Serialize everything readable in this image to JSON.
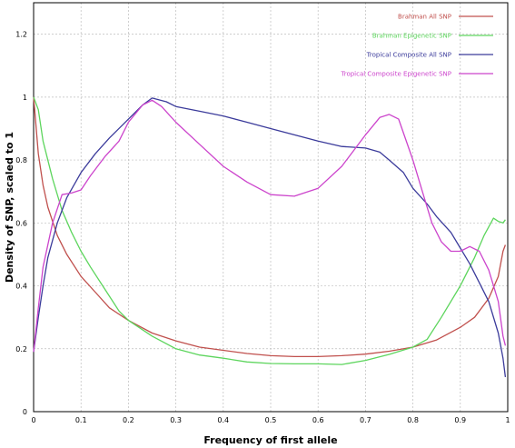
{
  "chart_data": {
    "type": "line",
    "xlabel": "Frequency of first allele",
    "ylabel": "Density of SNP, scaled to 1",
    "xlim": [
      0,
      1
    ],
    "ylim": [
      0,
      1.3
    ],
    "x_ticks": [
      "0",
      "0.1",
      "0.2",
      "0.3",
      "0.4",
      "0.5",
      "0.6",
      "0.7",
      "0.8",
      "0.9",
      "1"
    ],
    "y_ticks": [
      "0",
      "0.2",
      "0.4",
      "0.6",
      "0.8",
      "1",
      "1.2"
    ],
    "grid": true,
    "legend_position": "top-right",
    "series": [
      {
        "name": "Brahman All SNP",
        "color": "#c0504d",
        "points": [
          [
            0.0,
            1.0
          ],
          [
            0.01,
            0.82
          ],
          [
            0.02,
            0.72
          ],
          [
            0.03,
            0.65
          ],
          [
            0.05,
            0.56
          ],
          [
            0.07,
            0.5
          ],
          [
            0.1,
            0.43
          ],
          [
            0.13,
            0.38
          ],
          [
            0.16,
            0.33
          ],
          [
            0.2,
            0.29
          ],
          [
            0.25,
            0.25
          ],
          [
            0.3,
            0.225
          ],
          [
            0.35,
            0.205
          ],
          [
            0.4,
            0.195
          ],
          [
            0.45,
            0.185
          ],
          [
            0.5,
            0.178
          ],
          [
            0.55,
            0.175
          ],
          [
            0.6,
            0.175
          ],
          [
            0.65,
            0.178
          ],
          [
            0.7,
            0.183
          ],
          [
            0.75,
            0.192
          ],
          [
            0.8,
            0.205
          ],
          [
            0.85,
            0.228
          ],
          [
            0.9,
            0.268
          ],
          [
            0.93,
            0.3
          ],
          [
            0.96,
            0.36
          ],
          [
            0.98,
            0.43
          ],
          [
            0.99,
            0.51
          ],
          [
            0.995,
            0.53
          ]
        ]
      },
      {
        "name": "Brahman Epigenetic SNP",
        "color": "#5dd55d",
        "points": [
          [
            0.0,
            1.0
          ],
          [
            0.01,
            0.96
          ],
          [
            0.02,
            0.86
          ],
          [
            0.04,
            0.74
          ],
          [
            0.06,
            0.64
          ],
          [
            0.08,
            0.57
          ],
          [
            0.1,
            0.51
          ],
          [
            0.12,
            0.46
          ],
          [
            0.15,
            0.39
          ],
          [
            0.18,
            0.32
          ],
          [
            0.2,
            0.29
          ],
          [
            0.25,
            0.24
          ],
          [
            0.3,
            0.2
          ],
          [
            0.35,
            0.18
          ],
          [
            0.4,
            0.17
          ],
          [
            0.45,
            0.158
          ],
          [
            0.5,
            0.153
          ],
          [
            0.55,
            0.152
          ],
          [
            0.6,
            0.152
          ],
          [
            0.65,
            0.15
          ],
          [
            0.7,
            0.163
          ],
          [
            0.75,
            0.182
          ],
          [
            0.8,
            0.205
          ],
          [
            0.83,
            0.23
          ],
          [
            0.86,
            0.3
          ],
          [
            0.9,
            0.4
          ],
          [
            0.93,
            0.49
          ],
          [
            0.95,
            0.56
          ],
          [
            0.97,
            0.615
          ],
          [
            0.98,
            0.605
          ],
          [
            0.99,
            0.6
          ],
          [
            0.995,
            0.61
          ]
        ]
      },
      {
        "name": "Tropical Composite All SNP",
        "color": "#3b3b9b",
        "points": [
          [
            0.0,
            0.19
          ],
          [
            0.01,
            0.3
          ],
          [
            0.02,
            0.4
          ],
          [
            0.03,
            0.49
          ],
          [
            0.05,
            0.6
          ],
          [
            0.07,
            0.68
          ],
          [
            0.1,
            0.76
          ],
          [
            0.13,
            0.82
          ],
          [
            0.16,
            0.87
          ],
          [
            0.2,
            0.93
          ],
          [
            0.23,
            0.975
          ],
          [
            0.25,
            0.997
          ],
          [
            0.28,
            0.985
          ],
          [
            0.3,
            0.97
          ],
          [
            0.35,
            0.955
          ],
          [
            0.4,
            0.94
          ],
          [
            0.45,
            0.92
          ],
          [
            0.5,
            0.9
          ],
          [
            0.55,
            0.88
          ],
          [
            0.6,
            0.86
          ],
          [
            0.65,
            0.843
          ],
          [
            0.7,
            0.838
          ],
          [
            0.73,
            0.825
          ],
          [
            0.75,
            0.8
          ],
          [
            0.78,
            0.76
          ],
          [
            0.8,
            0.71
          ],
          [
            0.83,
            0.66
          ],
          [
            0.85,
            0.62
          ],
          [
            0.88,
            0.57
          ],
          [
            0.9,
            0.52
          ],
          [
            0.92,
            0.47
          ],
          [
            0.94,
            0.41
          ],
          [
            0.96,
            0.35
          ],
          [
            0.98,
            0.25
          ],
          [
            0.99,
            0.17
          ],
          [
            0.995,
            0.11
          ]
        ]
      },
      {
        "name": "Tropical Composite Epigenetic SNP",
        "color": "#cc44cc",
        "points": [
          [
            0.0,
            0.19
          ],
          [
            0.01,
            0.33
          ],
          [
            0.02,
            0.46
          ],
          [
            0.04,
            0.6
          ],
          [
            0.06,
            0.69
          ],
          [
            0.08,
            0.695
          ],
          [
            0.1,
            0.705
          ],
          [
            0.12,
            0.75
          ],
          [
            0.15,
            0.81
          ],
          [
            0.18,
            0.86
          ],
          [
            0.2,
            0.92
          ],
          [
            0.23,
            0.975
          ],
          [
            0.25,
            0.99
          ],
          [
            0.27,
            0.97
          ],
          [
            0.3,
            0.92
          ],
          [
            0.35,
            0.85
          ],
          [
            0.4,
            0.78
          ],
          [
            0.45,
            0.73
          ],
          [
            0.5,
            0.69
          ],
          [
            0.55,
            0.685
          ],
          [
            0.6,
            0.71
          ],
          [
            0.65,
            0.78
          ],
          [
            0.7,
            0.88
          ],
          [
            0.73,
            0.935
          ],
          [
            0.75,
            0.945
          ],
          [
            0.77,
            0.93
          ],
          [
            0.8,
            0.8
          ],
          [
            0.82,
            0.7
          ],
          [
            0.84,
            0.6
          ],
          [
            0.86,
            0.54
          ],
          [
            0.88,
            0.51
          ],
          [
            0.9,
            0.51
          ],
          [
            0.92,
            0.525
          ],
          [
            0.94,
            0.51
          ],
          [
            0.96,
            0.45
          ],
          [
            0.98,
            0.35
          ],
          [
            0.99,
            0.24
          ],
          [
            0.995,
            0.21
          ]
        ]
      }
    ]
  }
}
